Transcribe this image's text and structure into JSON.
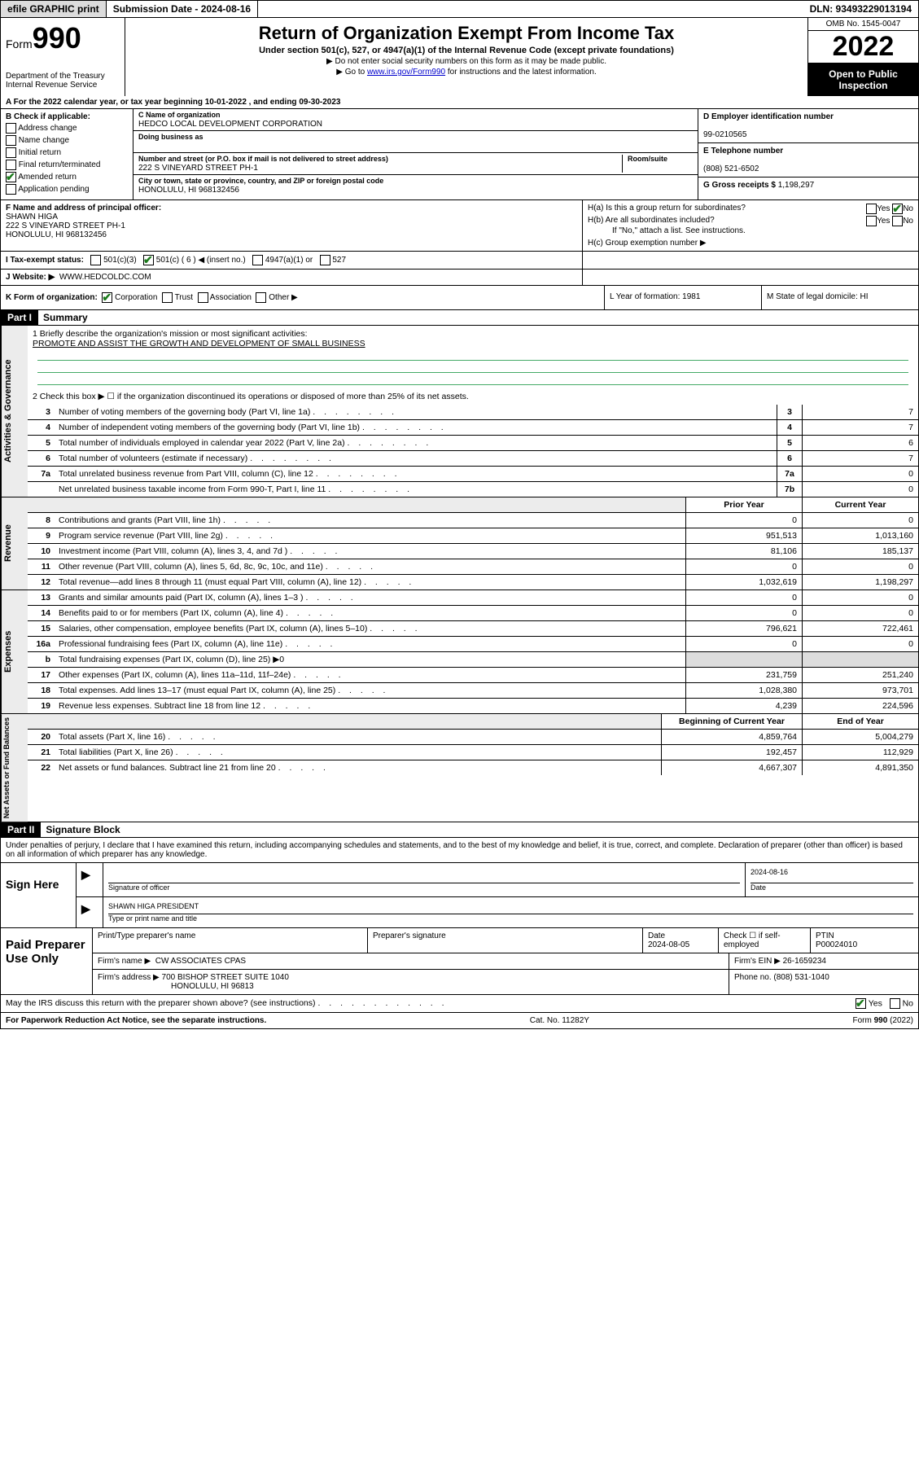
{
  "topbar": {
    "efile": "efile GRAPHIC print",
    "sub_label": "Submission Date - 2024-08-16",
    "dln": "DLN: 93493229013194"
  },
  "header": {
    "form_prefix": "Form",
    "form_num": "990",
    "dept": "Department of the Treasury",
    "irs": "Internal Revenue Service",
    "title": "Return of Organization Exempt From Income Tax",
    "sub1": "Under section 501(c), 527, or 4947(a)(1) of the Internal Revenue Code (except private foundations)",
    "sub2": "▶ Do not enter social security numbers on this form as it may be made public.",
    "sub3_pre": "▶ Go to ",
    "sub3_link": "www.irs.gov/Form990",
    "sub3_post": " for instructions and the latest information.",
    "omb": "OMB No. 1545-0047",
    "year": "2022",
    "open": "Open to Public Inspection"
  },
  "A": {
    "text": "A For the 2022 calendar year, or tax year beginning 10-01-2022   , and ending 09-30-2023"
  },
  "B": {
    "label": "B Check if applicable:",
    "opts": [
      "Address change",
      "Name change",
      "Initial return",
      "Final return/terminated",
      "Amended return",
      "Application pending"
    ],
    "checked_index": 4
  },
  "C": {
    "name_label": "C Name of organization",
    "name": "HEDCO LOCAL DEVELOPMENT CORPORATION",
    "dba_label": "Doing business as",
    "dba": "",
    "street_label": "Number and street (or P.O. box if mail is not delivered to street address)",
    "room_label": "Room/suite",
    "street": "222 S VINEYARD STREET PH-1",
    "city_label": "City or town, state or province, country, and ZIP or foreign postal code",
    "city": "HONOLULU, HI  968132456"
  },
  "D": {
    "label": "D Employer identification number",
    "val": "99-0210565"
  },
  "E": {
    "label": "E Telephone number",
    "val": "(808) 521-6502"
  },
  "G": {
    "label": "G Gross receipts $",
    "val": "1,198,297"
  },
  "F": {
    "label": "F  Name and address of principal officer:",
    "name": "SHAWN HIGA",
    "addr1": "222 S VINEYARD STREET PH-1",
    "addr2": "HONOLULU, HI  968132456"
  },
  "H": {
    "a": "H(a)  Is this a group return for subordinates?",
    "b": "H(b)  Are all subordinates included?",
    "b_note": "If \"No,\" attach a list. See instructions.",
    "c": "H(c)  Group exemption number ▶",
    "yes": "Yes",
    "no": "No"
  },
  "I": {
    "label": "I   Tax-exempt status:",
    "o1": "501(c)(3)",
    "o2": "501(c) ( 6 ) ◀ (insert no.)",
    "o3": "4947(a)(1) or",
    "o4": "527"
  },
  "J": {
    "label": "J   Website: ▶",
    "val": "WWW.HEDCOLDC.COM"
  },
  "K": {
    "label": "K Form of organization:",
    "o1": "Corporation",
    "o2": "Trust",
    "o3": "Association",
    "o4": "Other ▶"
  },
  "L": {
    "label": "L Year of formation: 1981"
  },
  "M": {
    "label": "M State of legal domicile: HI"
  },
  "part1": {
    "hdr": "Part I",
    "title": "Summary"
  },
  "summary": {
    "q1_label": "1   Briefly describe the organization's mission or most significant activities:",
    "q1_val": "PROMOTE AND ASSIST THE GROWTH AND DEVELOPMENT OF SMALL BUSINESS",
    "q2": "2   Check this box ▶ ☐  if the organization discontinued its operations or disposed of more than 25% of its net assets.",
    "lines_gov": [
      {
        "n": "3",
        "d": "Number of voting members of the governing body (Part VI, line 1a)",
        "box": "3",
        "v": "7"
      },
      {
        "n": "4",
        "d": "Number of independent voting members of the governing body (Part VI, line 1b)",
        "box": "4",
        "v": "7"
      },
      {
        "n": "5",
        "d": "Total number of individuals employed in calendar year 2022 (Part V, line 2a)",
        "box": "5",
        "v": "6"
      },
      {
        "n": "6",
        "d": "Total number of volunteers (estimate if necessary)",
        "box": "6",
        "v": "7"
      },
      {
        "n": "7a",
        "d": "Total unrelated business revenue from Part VIII, column (C), line 12",
        "box": "7a",
        "v": "0"
      },
      {
        "n": "",
        "d": "Net unrelated business taxable income from Form 990-T, Part I, line 11",
        "box": "7b",
        "v": "0"
      }
    ],
    "col_prior": "Prior Year",
    "col_current": "Current Year",
    "revenue": [
      {
        "n": "8",
        "d": "Contributions and grants (Part VIII, line 1h)",
        "p": "0",
        "c": "0"
      },
      {
        "n": "9",
        "d": "Program service revenue (Part VIII, line 2g)",
        "p": "951,513",
        "c": "1,013,160"
      },
      {
        "n": "10",
        "d": "Investment income (Part VIII, column (A), lines 3, 4, and 7d )",
        "p": "81,106",
        "c": "185,137"
      },
      {
        "n": "11",
        "d": "Other revenue (Part VIII, column (A), lines 5, 6d, 8c, 9c, 10c, and 11e)",
        "p": "0",
        "c": "0"
      },
      {
        "n": "12",
        "d": "Total revenue—add lines 8 through 11 (must equal Part VIII, column (A), line 12)",
        "p": "1,032,619",
        "c": "1,198,297"
      }
    ],
    "expenses": [
      {
        "n": "13",
        "d": "Grants and similar amounts paid (Part IX, column (A), lines 1–3 )",
        "p": "0",
        "c": "0"
      },
      {
        "n": "14",
        "d": "Benefits paid to or for members (Part IX, column (A), line 4)",
        "p": "0",
        "c": "0"
      },
      {
        "n": "15",
        "d": "Salaries, other compensation, employee benefits (Part IX, column (A), lines 5–10)",
        "p": "796,621",
        "c": "722,461"
      },
      {
        "n": "16a",
        "d": "Professional fundraising fees (Part IX, column (A), line 11e)",
        "p": "0",
        "c": "0"
      },
      {
        "n": "b",
        "d": "Total fundraising expenses (Part IX, column (D), line 25) ▶0",
        "p": "",
        "c": "",
        "noval": true
      },
      {
        "n": "17",
        "d": "Other expenses (Part IX, column (A), lines 11a–11d, 11f–24e)",
        "p": "231,759",
        "c": "251,240"
      },
      {
        "n": "18",
        "d": "Total expenses. Add lines 13–17 (must equal Part IX, column (A), line 25)",
        "p": "1,028,380",
        "c": "973,701"
      },
      {
        "n": "19",
        "d": "Revenue less expenses. Subtract line 18 from line 12",
        "p": "4,239",
        "c": "224,596"
      }
    ],
    "col_begin": "Beginning of Current Year",
    "col_end": "End of Year",
    "netassets": [
      {
        "n": "20",
        "d": "Total assets (Part X, line 16)",
        "p": "4,859,764",
        "c": "5,004,279"
      },
      {
        "n": "21",
        "d": "Total liabilities (Part X, line 26)",
        "p": "192,457",
        "c": "112,929"
      },
      {
        "n": "22",
        "d": "Net assets or fund balances. Subtract line 21 from line 20",
        "p": "4,667,307",
        "c": "4,891,350"
      }
    ]
  },
  "part2": {
    "hdr": "Part II",
    "title": "Signature Block"
  },
  "sig": {
    "declare": "Under penalties of perjury, I declare that I have examined this return, including accompanying schedules and statements, and to the best of my knowledge and belief, it is true, correct, and complete. Declaration of preparer (other than officer) is based on all information of which preparer has any knowledge.",
    "sign_here": "Sign Here",
    "sig_officer": "Signature of officer",
    "date": "2024-08-16",
    "date_lbl": "Date",
    "officer_name": "SHAWN HIGA PRESIDENT",
    "type_name": "Type or print name and title"
  },
  "prep": {
    "label": "Paid Preparer Use Only",
    "h1": "Print/Type preparer's name",
    "h2": "Preparer's signature",
    "h3": "Date",
    "h3v": "2024-08-05",
    "h4": "Check ☐ if self-employed",
    "h5": "PTIN",
    "h5v": "P00024010",
    "firm_name_lbl": "Firm's name    ▶",
    "firm_name": "CW ASSOCIATES CPAS",
    "firm_ein_lbl": "Firm's EIN ▶",
    "firm_ein": "26-1659234",
    "firm_addr_lbl": "Firm's address ▶",
    "firm_addr1": "700 BISHOP STREET SUITE 1040",
    "firm_addr2": "HONOLULU, HI  96813",
    "phone_lbl": "Phone no.",
    "phone": "(808) 531-1040"
  },
  "discuss": {
    "q": "May the IRS discuss this return with the preparer shown above? (see instructions)",
    "yes": "Yes",
    "no": "No"
  },
  "footer": {
    "left": "For Paperwork Reduction Act Notice, see the separate instructions.",
    "mid": "Cat. No. 11282Y",
    "right": "Form 990 (2022)"
  },
  "vtabs": {
    "gov": "Activities & Governance",
    "rev": "Revenue",
    "exp": "Expenses",
    "net": "Net Assets or Fund Balances"
  }
}
